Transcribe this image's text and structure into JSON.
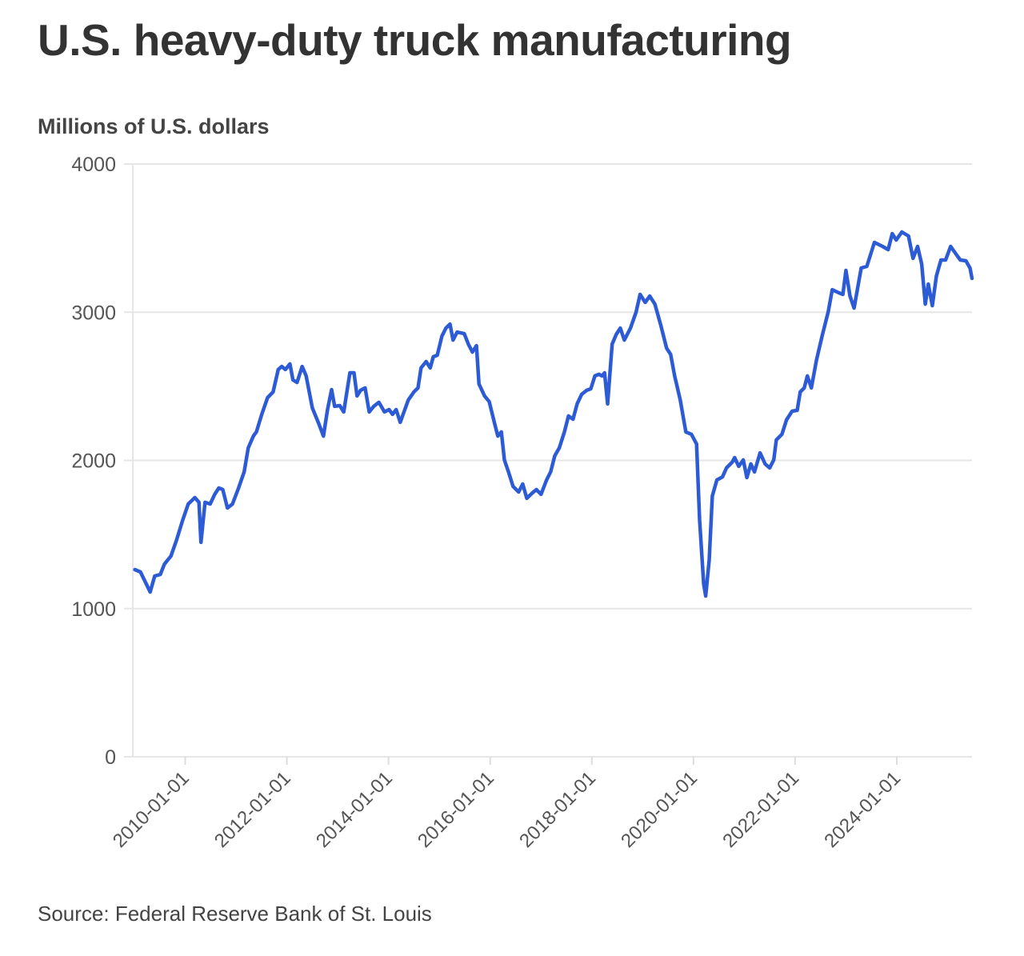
{
  "chart_data": {
    "type": "line",
    "title": "U.S. heavy-duty truck manufacturing",
    "ylabel": "Millions of U.S. dollars",
    "xlabel": "",
    "source": "Source: Federal Reserve Bank of St. Louis",
    "ylim": [
      0,
      4000
    ],
    "xlim": [
      2009.0,
      2025.48
    ],
    "yticks": [
      {
        "value": 0,
        "label": "0"
      },
      {
        "value": 1000,
        "label": "1000"
      },
      {
        "value": 2000,
        "label": "2000"
      },
      {
        "value": 3000,
        "label": "3000"
      },
      {
        "value": 4000,
        "label": "4000"
      }
    ],
    "xticks": [
      {
        "value": 2010,
        "label": "2010-01-01"
      },
      {
        "value": 2012,
        "label": "2012-01-01"
      },
      {
        "value": 2014,
        "label": "2014-01-01"
      },
      {
        "value": 2016,
        "label": "2016-01-01"
      },
      {
        "value": 2018,
        "label": "2018-01-01"
      },
      {
        "value": 2020,
        "label": "2020-01-01"
      },
      {
        "value": 2022,
        "label": "2022-01-01"
      },
      {
        "value": 2024,
        "label": "2024-01-01"
      }
    ],
    "grid": true,
    "line_color": "#2d5bd6",
    "series": [
      {
        "name": "Heavy-duty truck manufacturing",
        "x": [
          2009.01,
          2009.12,
          2009.31,
          2009.4,
          2009.51,
          2009.59,
          2009.72,
          2009.83,
          2009.95,
          2010.06,
          2010.19,
          2010.27,
          2010.31,
          2010.39,
          2010.49,
          2010.58,
          2010.66,
          2010.74,
          2010.83,
          2010.93,
          2011.05,
          2011.16,
          2011.24,
          2011.34,
          2011.4,
          2011.51,
          2011.62,
          2011.73,
          2011.83,
          2011.9,
          2011.97,
          2012.06,
          2012.12,
          2012.2,
          2012.3,
          2012.38,
          2012.5,
          2012.63,
          2012.72,
          2012.8,
          2012.88,
          2012.94,
          2013.04,
          2013.12,
          2013.18,
          2013.24,
          2013.32,
          2013.38,
          2013.45,
          2013.54,
          2013.62,
          2013.71,
          2013.81,
          2013.92,
          2014.01,
          2014.08,
          2014.15,
          2014.23,
          2014.39,
          2014.5,
          2014.58,
          2014.64,
          2014.74,
          2014.82,
          2014.88,
          2014.96,
          2015.05,
          2015.13,
          2015.21,
          2015.27,
          2015.35,
          2015.49,
          2015.57,
          2015.65,
          2015.73,
          2015.78,
          2015.89,
          2015.98,
          2016.09,
          2016.15,
          2016.22,
          2016.28,
          2016.36,
          2016.45,
          2016.56,
          2016.64,
          2016.72,
          2016.83,
          2016.91,
          2017.0,
          2017.11,
          2017.19,
          2017.27,
          2017.36,
          2017.46,
          2017.54,
          2017.63,
          2017.71,
          2017.8,
          2017.9,
          2017.98,
          2018.06,
          2018.14,
          2018.2,
          2018.25,
          2018.31,
          2018.4,
          2018.48,
          2018.56,
          2018.64,
          2018.76,
          2018.87,
          2018.95,
          2019.05,
          2019.14,
          2019.24,
          2019.35,
          2019.47,
          2019.55,
          2019.63,
          2019.74,
          2019.85,
          2019.96,
          2020.06,
          2020.12,
          2020.2,
          2020.24,
          2020.31,
          2020.37,
          2020.46,
          2020.57,
          2020.65,
          2020.76,
          2020.81,
          2020.89,
          2020.98,
          2021.05,
          2021.13,
          2021.2,
          2021.31,
          2021.41,
          2021.5,
          2021.58,
          2021.63,
          2021.74,
          2021.83,
          2021.94,
          2022.04,
          2022.1,
          2022.18,
          2022.24,
          2022.32,
          2022.42,
          2022.53,
          2022.65,
          2022.73,
          2022.86,
          2022.94,
          2023.0,
          2023.08,
          2023.16,
          2023.3,
          2023.41,
          2023.56,
          2023.72,
          2023.83,
          2023.91,
          2023.99,
          2024.1,
          2024.23,
          2024.32,
          2024.41,
          2024.49,
          2024.56,
          2024.62,
          2024.7,
          2024.78,
          2024.87,
          2024.96,
          2025.06,
          2025.17,
          2025.25,
          2025.36,
          2025.44,
          2025.48
        ],
        "y": [
          1263,
          1247,
          1112,
          1220,
          1230,
          1300,
          1355,
          1463,
          1598,
          1706,
          1749,
          1717,
          1447,
          1717,
          1706,
          1771,
          1814,
          1803,
          1679,
          1706,
          1814,
          1922,
          2084,
          2164,
          2192,
          2316,
          2424,
          2462,
          2613,
          2634,
          2613,
          2651,
          2543,
          2526,
          2634,
          2570,
          2354,
          2246,
          2164,
          2343,
          2478,
          2365,
          2370,
          2327,
          2462,
          2591,
          2591,
          2435,
          2473,
          2489,
          2327,
          2365,
          2392,
          2327,
          2343,
          2311,
          2343,
          2257,
          2408,
          2462,
          2489,
          2624,
          2667,
          2624,
          2699,
          2710,
          2839,
          2893,
          2920,
          2812,
          2866,
          2855,
          2785,
          2731,
          2774,
          2516,
          2435,
          2397,
          2246,
          2164,
          2192,
          2003,
          1922,
          1825,
          1787,
          1841,
          1744,
          1781,
          1803,
          1771,
          1868,
          1922,
          2030,
          2084,
          2192,
          2300,
          2278,
          2381,
          2446,
          2473,
          2483,
          2570,
          2581,
          2570,
          2591,
          2381,
          2785,
          2850,
          2893,
          2812,
          2893,
          3001,
          3120,
          3066,
          3109,
          3055,
          2920,
          2758,
          2715,
          2570,
          2408,
          2192,
          2176,
          2111,
          1598,
          1166,
          1085,
          1328,
          1760,
          1868,
          1889,
          1949,
          1987,
          2019,
          1960,
          2003,
          1884,
          1976,
          1922,
          2051,
          1976,
          1949,
          2003,
          2138,
          2176,
          2273,
          2332,
          2338,
          2462,
          2489,
          2570,
          2489,
          2677,
          2839,
          3001,
          3152,
          3131,
          3120,
          3282,
          3109,
          3028,
          3298,
          3309,
          3471,
          3444,
          3422,
          3530,
          3487,
          3541,
          3514,
          3363,
          3444,
          3325,
          3055,
          3190,
          3044,
          3244,
          3352,
          3352,
          3444,
          3390,
          3352,
          3347,
          3298,
          3228
        ]
      }
    ]
  }
}
